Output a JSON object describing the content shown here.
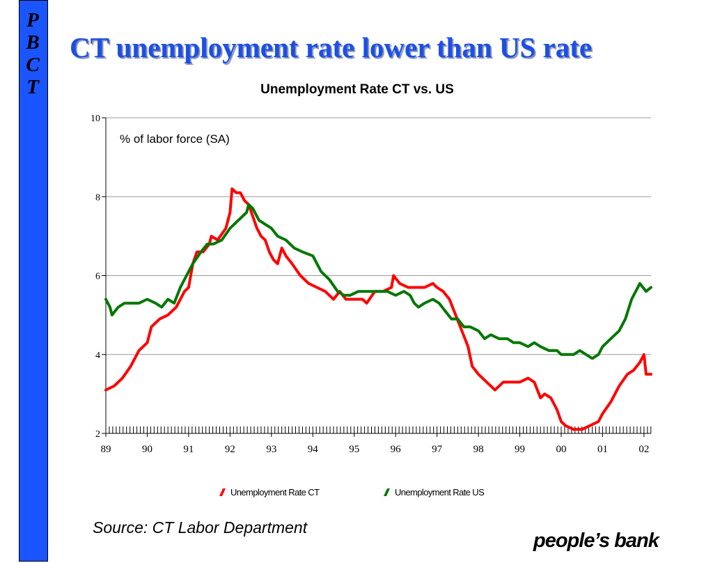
{
  "sidebar": {
    "letters": [
      "P",
      "B",
      "C",
      "T"
    ]
  },
  "slide_title": "CT unemployment rate lower than US rate",
  "source": "Source: CT Labor Department",
  "logo_text": "people’s bank",
  "colors": {
    "sidebar": "#1a55ff",
    "title": "#1d4fe6",
    "ct": "#ff0000",
    "us": "#007700"
  },
  "chart_data": {
    "type": "line",
    "title": "Unemployment Rate CT vs. US",
    "annotation": "% of labor force (SA)",
    "xlabel": "",
    "ylabel": "",
    "x_ticks": [
      "89",
      "90",
      "91",
      "92",
      "93",
      "94",
      "95",
      "96",
      "97",
      "98",
      "99",
      "00",
      "01",
      "02"
    ],
    "x_range": [
      1989.0,
      2002.17
    ],
    "y_ticks": [
      2,
      4,
      6,
      8,
      10
    ],
    "ylim": [
      2,
      10
    ],
    "grid": "horizontal",
    "legend_position": "bottom",
    "series": [
      {
        "name": "Unemployment Rate CT",
        "color": "#ff0000",
        "points": [
          [
            1989.0,
            3.1
          ],
          [
            1989.2,
            3.2
          ],
          [
            1989.4,
            3.4
          ],
          [
            1989.6,
            3.7
          ],
          [
            1989.8,
            4.1
          ],
          [
            1990.0,
            4.3
          ],
          [
            1990.1,
            4.7
          ],
          [
            1990.3,
            4.9
          ],
          [
            1990.5,
            5.0
          ],
          [
            1990.7,
            5.2
          ],
          [
            1990.9,
            5.6
          ],
          [
            1991.0,
            5.7
          ],
          [
            1991.1,
            6.3
          ],
          [
            1991.2,
            6.6
          ],
          [
            1991.35,
            6.6
          ],
          [
            1991.5,
            6.8
          ],
          [
            1991.55,
            7.0
          ],
          [
            1991.7,
            6.9
          ],
          [
            1991.9,
            7.2
          ],
          [
            1992.0,
            7.6
          ],
          [
            1992.05,
            8.2
          ],
          [
            1992.15,
            8.1
          ],
          [
            1992.25,
            8.1
          ],
          [
            1992.35,
            7.9
          ],
          [
            1992.45,
            7.8
          ],
          [
            1992.55,
            7.5
          ],
          [
            1992.65,
            7.2
          ],
          [
            1992.75,
            7.0
          ],
          [
            1992.85,
            6.9
          ],
          [
            1992.95,
            6.6
          ],
          [
            1993.05,
            6.4
          ],
          [
            1993.15,
            6.3
          ],
          [
            1993.25,
            6.7
          ],
          [
            1993.35,
            6.5
          ],
          [
            1993.5,
            6.3
          ],
          [
            1993.7,
            6.0
          ],
          [
            1993.9,
            5.8
          ],
          [
            1994.1,
            5.7
          ],
          [
            1994.3,
            5.6
          ],
          [
            1994.5,
            5.4
          ],
          [
            1994.65,
            5.6
          ],
          [
            1994.8,
            5.4
          ],
          [
            1995.0,
            5.4
          ],
          [
            1995.2,
            5.4
          ],
          [
            1995.3,
            5.3
          ],
          [
            1995.5,
            5.6
          ],
          [
            1995.7,
            5.6
          ],
          [
            1995.9,
            5.7
          ],
          [
            1995.95,
            6.0
          ],
          [
            1996.1,
            5.8
          ],
          [
            1996.3,
            5.7
          ],
          [
            1996.5,
            5.7
          ],
          [
            1996.7,
            5.7
          ],
          [
            1996.9,
            5.8
          ],
          [
            1997.0,
            5.7
          ],
          [
            1997.15,
            5.6
          ],
          [
            1997.3,
            5.4
          ],
          [
            1997.45,
            5.0
          ],
          [
            1997.6,
            4.6
          ],
          [
            1997.75,
            4.2
          ],
          [
            1997.85,
            3.7
          ],
          [
            1998.0,
            3.5
          ],
          [
            1998.2,
            3.3
          ],
          [
            1998.4,
            3.1
          ],
          [
            1998.6,
            3.3
          ],
          [
            1998.8,
            3.3
          ],
          [
            1999.0,
            3.3
          ],
          [
            1999.2,
            3.4
          ],
          [
            1999.35,
            3.3
          ],
          [
            1999.5,
            2.9
          ],
          [
            1999.6,
            3.0
          ],
          [
            1999.75,
            2.9
          ],
          [
            1999.9,
            2.6
          ],
          [
            2000.0,
            2.3
          ],
          [
            2000.1,
            2.2
          ],
          [
            2000.3,
            2.1
          ],
          [
            2000.5,
            2.1
          ],
          [
            2000.7,
            2.2
          ],
          [
            2000.9,
            2.3
          ],
          [
            2001.0,
            2.5
          ],
          [
            2001.2,
            2.8
          ],
          [
            2001.4,
            3.2
          ],
          [
            2001.6,
            3.5
          ],
          [
            2001.75,
            3.6
          ],
          [
            2001.9,
            3.8
          ],
          [
            2002.0,
            4.0
          ],
          [
            2002.05,
            3.5
          ],
          [
            2002.17,
            3.5
          ]
        ]
      },
      {
        "name": "Unemployment Rate US",
        "color": "#007700",
        "points": [
          [
            1989.0,
            5.4
          ],
          [
            1989.1,
            5.2
          ],
          [
            1989.15,
            5.0
          ],
          [
            1989.3,
            5.2
          ],
          [
            1989.45,
            5.3
          ],
          [
            1989.6,
            5.3
          ],
          [
            1989.8,
            5.3
          ],
          [
            1990.0,
            5.4
          ],
          [
            1990.2,
            5.3
          ],
          [
            1990.35,
            5.2
          ],
          [
            1990.5,
            5.4
          ],
          [
            1990.65,
            5.3
          ],
          [
            1990.8,
            5.7
          ],
          [
            1990.95,
            6.0
          ],
          [
            1991.1,
            6.3
          ],
          [
            1991.3,
            6.6
          ],
          [
            1991.45,
            6.8
          ],
          [
            1991.6,
            6.8
          ],
          [
            1991.8,
            6.9
          ],
          [
            1992.0,
            7.2
          ],
          [
            1992.2,
            7.4
          ],
          [
            1992.4,
            7.6
          ],
          [
            1992.45,
            7.8
          ],
          [
            1992.55,
            7.7
          ],
          [
            1992.7,
            7.4
          ],
          [
            1992.85,
            7.3
          ],
          [
            1993.0,
            7.2
          ],
          [
            1993.15,
            7.0
          ],
          [
            1993.35,
            6.9
          ],
          [
            1993.55,
            6.7
          ],
          [
            1993.75,
            6.6
          ],
          [
            1994.0,
            6.5
          ],
          [
            1994.2,
            6.1
          ],
          [
            1994.4,
            5.9
          ],
          [
            1994.6,
            5.6
          ],
          [
            1994.75,
            5.5
          ],
          [
            1994.9,
            5.5
          ],
          [
            1995.1,
            5.6
          ],
          [
            1995.25,
            5.6
          ],
          [
            1995.4,
            5.6
          ],
          [
            1995.6,
            5.6
          ],
          [
            1995.8,
            5.6
          ],
          [
            1996.0,
            5.5
          ],
          [
            1996.2,
            5.6
          ],
          [
            1996.35,
            5.5
          ],
          [
            1996.45,
            5.3
          ],
          [
            1996.55,
            5.2
          ],
          [
            1996.7,
            5.3
          ],
          [
            1996.9,
            5.4
          ],
          [
            1997.05,
            5.3
          ],
          [
            1997.2,
            5.1
          ],
          [
            1997.35,
            4.9
          ],
          [
            1997.5,
            4.9
          ],
          [
            1997.65,
            4.7
          ],
          [
            1997.8,
            4.7
          ],
          [
            1998.0,
            4.6
          ],
          [
            1998.15,
            4.4
          ],
          [
            1998.3,
            4.5
          ],
          [
            1998.5,
            4.4
          ],
          [
            1998.7,
            4.4
          ],
          [
            1998.85,
            4.3
          ],
          [
            1999.0,
            4.3
          ],
          [
            1999.2,
            4.2
          ],
          [
            1999.35,
            4.3
          ],
          [
            1999.5,
            4.2
          ],
          [
            1999.7,
            4.1
          ],
          [
            1999.9,
            4.1
          ],
          [
            2000.0,
            4.0
          ],
          [
            2000.15,
            4.0
          ],
          [
            2000.3,
            4.0
          ],
          [
            2000.45,
            4.1
          ],
          [
            2000.6,
            4.0
          ],
          [
            2000.75,
            3.9
          ],
          [
            2000.9,
            4.0
          ],
          [
            2001.0,
            4.2
          ],
          [
            2001.2,
            4.4
          ],
          [
            2001.4,
            4.6
          ],
          [
            2001.55,
            4.9
          ],
          [
            2001.7,
            5.4
          ],
          [
            2001.85,
            5.7
          ],
          [
            2001.9,
            5.8
          ],
          [
            2002.05,
            5.6
          ],
          [
            2002.17,
            5.7
          ]
        ]
      }
    ]
  }
}
